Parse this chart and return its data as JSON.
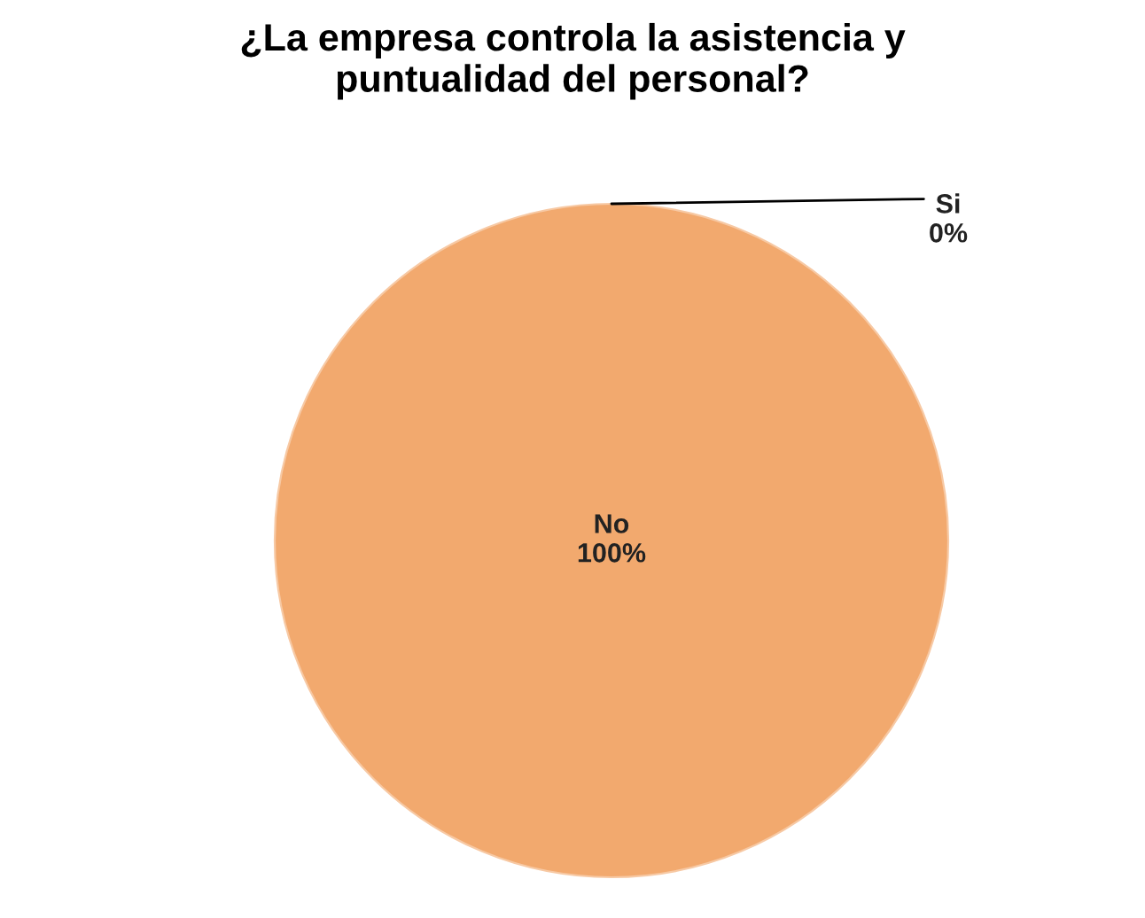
{
  "chart_data": {
    "type": "pie",
    "title": "¿La empresa controla la asistencia y\npuntualidad del personal?",
    "categories": [
      "Si",
      "No"
    ],
    "values": [
      0,
      100
    ],
    "colors": [
      "#4f81bd",
      "#f2a96e"
    ],
    "value_labels": [
      "0%",
      "100%"
    ]
  }
}
